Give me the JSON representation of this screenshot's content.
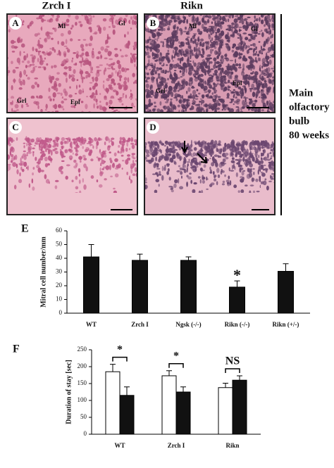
{
  "figure": {
    "columns": [
      "Zrch I",
      "Rikn"
    ],
    "panels": [
      {
        "letter": "A",
        "regions": [
          "Ml",
          "Gl",
          "Grl",
          "Epl"
        ]
      },
      {
        "letter": "B",
        "regions": [
          "Ml",
          "Gl",
          "Grl",
          "Epl"
        ]
      },
      {
        "letter": "C"
      },
      {
        "letter": "D"
      }
    ],
    "side_label": [
      "Main",
      "olfactory",
      "bulb",
      "80 weeks"
    ]
  },
  "chart_data": [
    {
      "type": "bar",
      "panel": "E",
      "ylabel": "Mitral cell number/mm",
      "categories": [
        "WT",
        "Zrch I",
        "Ngsk (-/-)",
        "Rikn (-/-)",
        "Rikn (+/-)"
      ],
      "values": [
        41,
        38.5,
        38.5,
        19,
        30.5
      ],
      "errors": [
        9,
        4.5,
        2.5,
        4.5,
        5.5
      ],
      "color": "#111111",
      "ylim": [
        0,
        60
      ],
      "yticks": [
        0,
        10,
        20,
        30,
        40,
        50,
        60
      ],
      "annotations": [
        {
          "text": "*",
          "category": "Rikn (-/-)"
        }
      ]
    },
    {
      "type": "grouped_bar",
      "panel": "F",
      "ylabel": "Duration of stay [sec]",
      "categories": [
        "WT",
        "Zrch I",
        "Rikn"
      ],
      "series": [
        {
          "color": "#ffffff",
          "values": [
            185,
            173,
            138
          ],
          "errors": [
            22,
            15,
            13
          ]
        },
        {
          "color": "#111111",
          "values": [
            115,
            125,
            160
          ],
          "errors": [
            25,
            15,
            13
          ]
        }
      ],
      "ylim": [
        0,
        250
      ],
      "yticks": [
        0,
        50,
        100,
        150,
        200,
        250
      ],
      "annotations": [
        {
          "text": "*",
          "category": "WT"
        },
        {
          "text": "*",
          "category": "Zrch I"
        },
        {
          "text": "NS",
          "category": "Rikn"
        }
      ]
    }
  ]
}
